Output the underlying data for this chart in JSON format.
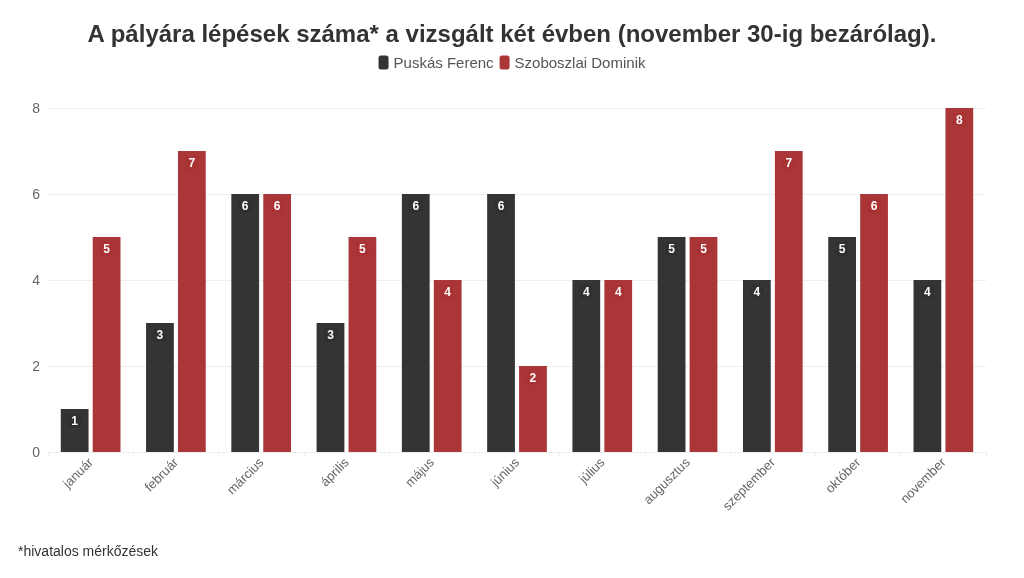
{
  "chart_data": {
    "type": "bar",
    "title": "A pályára lépések száma* a vizsgált két évben (november 30-ig bezárólag).",
    "categories": [
      "január",
      "február",
      "március",
      "április",
      "május",
      "június",
      "július",
      "augusztus",
      "szeptember",
      "október",
      "november"
    ],
    "series": [
      {
        "name": "Puskás Ferenc",
        "color": "#303030",
        "values": [
          1,
          3,
          6,
          3,
          6,
          6,
          4,
          5,
          4,
          5,
          4
        ]
      },
      {
        "name": "Szoboszlai Dominik",
        "color": "#a83234",
        "values": [
          5,
          7,
          6,
          5,
          4,
          2,
          4,
          5,
          7,
          6,
          8
        ]
      }
    ],
    "ylim": [
      0,
      8
    ],
    "yticks": [
      0,
      2,
      4,
      6,
      8
    ],
    "grid": "y",
    "legend": "top",
    "data_labels": true,
    "annotations": [
      "*hivatalos mérkőzések"
    ]
  }
}
